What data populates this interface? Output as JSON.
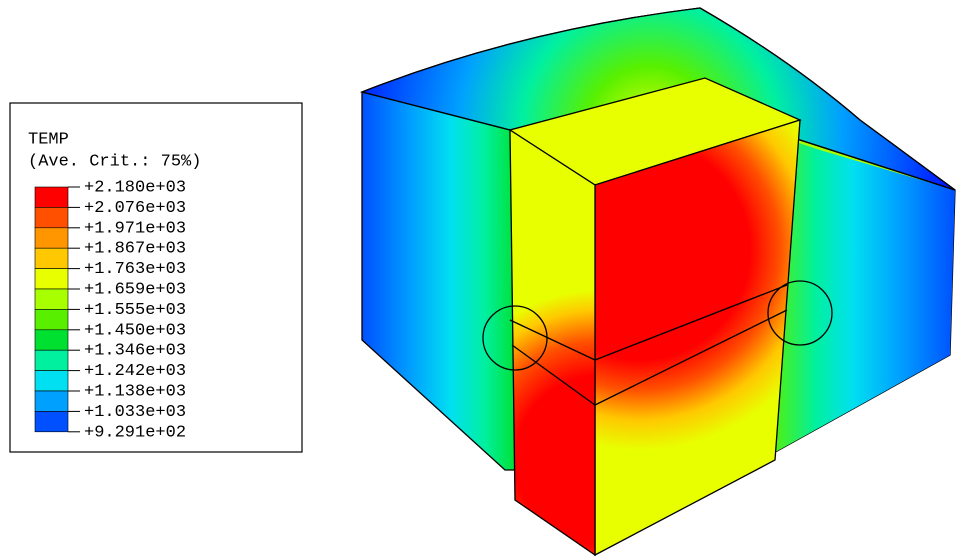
{
  "legend": {
    "title": "TEMP",
    "subtitle": "(Ave. Crit.: 75%)",
    "labels": [
      "+2.180e+03",
      "+2.076e+03",
      "+1.971e+03",
      "+1.867e+03",
      "+1.763e+03",
      "+1.659e+03",
      "+1.555e+03",
      "+1.450e+03",
      "+1.346e+03",
      "+1.242e+03",
      "+1.138e+03",
      "+1.033e+03",
      "+9.291e+02"
    ],
    "colors": [
      "#ff0000",
      "#ff5000",
      "#ff9600",
      "#ffc800",
      "#e8ff00",
      "#a8ff00",
      "#58f000",
      "#00e030",
      "#00f0a0",
      "#00e0f0",
      "#00a0ff",
      "#0050ff"
    ]
  }
}
